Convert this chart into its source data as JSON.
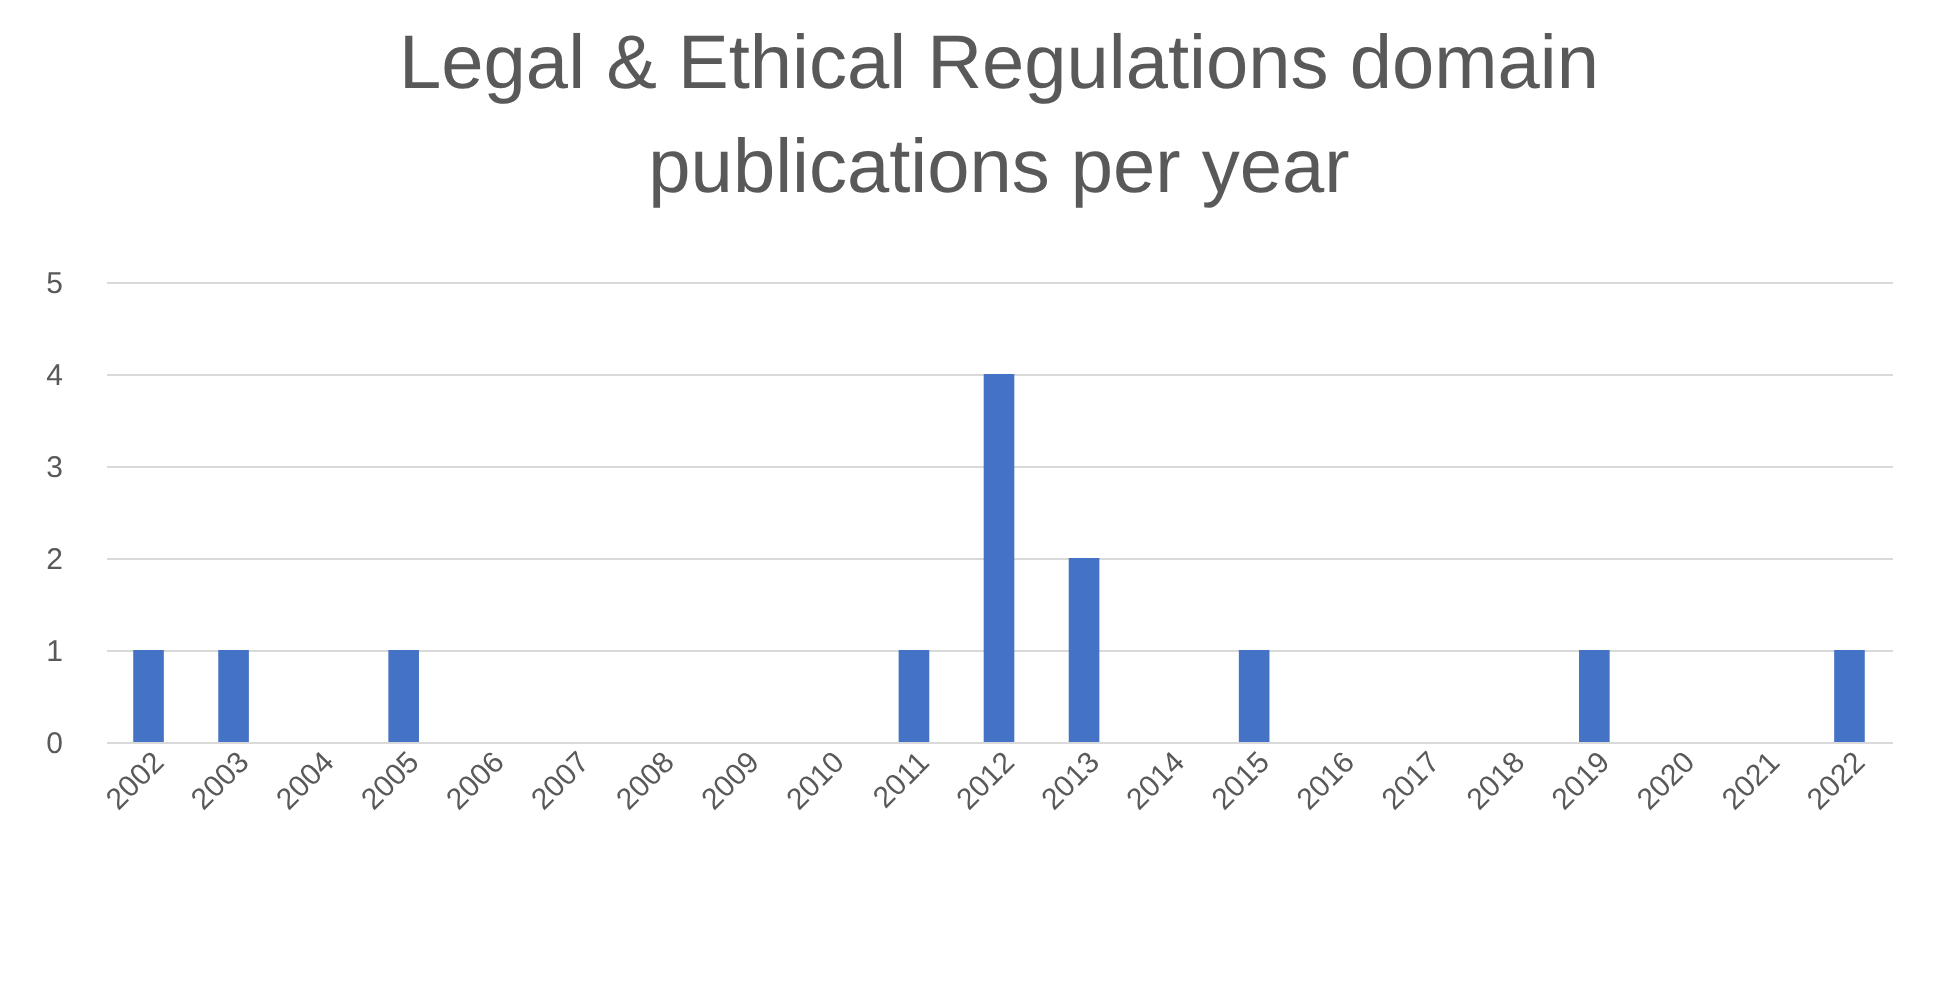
{
  "chart_data": {
    "type": "bar",
    "title": "Legal & Ethical Regulations domain publications per year",
    "categories": [
      "2002",
      "2003",
      "2004",
      "2005",
      "2006",
      "2007",
      "2008",
      "2009",
      "2010",
      "2011",
      "2012",
      "2013",
      "2014",
      "2015",
      "2016",
      "2017",
      "2018",
      "2019",
      "2020",
      "2021",
      "2022"
    ],
    "values": [
      1,
      1,
      0,
      1,
      0,
      0,
      0,
      0,
      0,
      1,
      4,
      2,
      0,
      1,
      0,
      0,
      0,
      1,
      0,
      0,
      1
    ],
    "color": "#4472c4",
    "ylim": [
      0,
      5
    ],
    "yticks": [
      0,
      1,
      2,
      3,
      4,
      5
    ],
    "grid": "y"
  }
}
